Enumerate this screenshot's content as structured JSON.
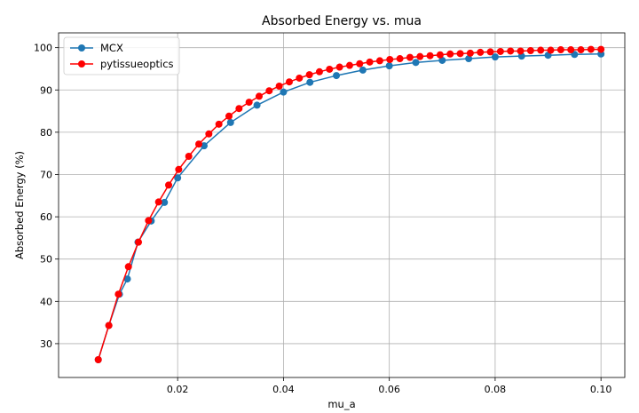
{
  "chart_data": {
    "type": "line",
    "title": "Absorbed Energy vs. mua",
    "xlabel": "mu_a",
    "ylabel": "Absorbed Energy (%)",
    "xlim": [
      -0.0025,
      0.1045
    ],
    "ylim": [
      22,
      103.5
    ],
    "xticks": [
      0.02,
      0.04,
      0.06,
      0.08,
      0.1
    ],
    "xtick_labels": [
      "0.02",
      "0.04",
      "0.06",
      "0.08",
      "0.10"
    ],
    "yticks": [
      30,
      40,
      50,
      60,
      70,
      80,
      90,
      100
    ],
    "ytick_labels": [
      "30",
      "40",
      "50",
      "60",
      "70",
      "80",
      "90",
      "100"
    ],
    "grid": true,
    "legend_position": "top-left",
    "series": [
      {
        "name": "MCX",
        "color": "#1f77b4",
        "marker": "circle",
        "x": [
          0.005,
          0.007,
          0.009,
          0.0105,
          0.0125,
          0.015,
          0.0175,
          0.02,
          0.025,
          0.03,
          0.035,
          0.04,
          0.045,
          0.05,
          0.055,
          0.06,
          0.065,
          0.07,
          0.075,
          0.08,
          0.085,
          0.09,
          0.095,
          0.1
        ],
        "y": [
          26.2,
          34.3,
          41.7,
          45.3,
          54.0,
          59.0,
          63.4,
          69.2,
          76.8,
          82.3,
          86.4,
          89.5,
          91.8,
          93.4,
          94.7,
          95.7,
          96.5,
          97.0,
          97.4,
          97.8,
          98.0,
          98.2,
          98.4,
          98.5
        ]
      },
      {
        "name": "pytissueoptics",
        "color": "#ff0000",
        "marker": "circle",
        "x": [
          0.005,
          0.007,
          0.0088,
          0.0107,
          0.0126,
          0.0145,
          0.0164,
          0.0183,
          0.0202,
          0.0221,
          0.024,
          0.0259,
          0.0278,
          0.0297,
          0.0316,
          0.0335,
          0.0354,
          0.0373,
          0.0392,
          0.0411,
          0.043,
          0.0449,
          0.0468,
          0.0487,
          0.0506,
          0.0525,
          0.0544,
          0.0563,
          0.0582,
          0.0601,
          0.062,
          0.0639,
          0.0658,
          0.0677,
          0.0696,
          0.0715,
          0.0734,
          0.0753,
          0.0772,
          0.0791,
          0.081,
          0.0829,
          0.0848,
          0.0867,
          0.0886,
          0.0905,
          0.0924,
          0.0943,
          0.0962,
          0.0981,
          0.1
        ],
        "y": [
          26.2,
          34.3,
          41.7,
          48.2,
          54.0,
          59.1,
          63.5,
          67.5,
          71.2,
          74.3,
          77.2,
          79.6,
          81.9,
          83.8,
          85.6,
          87.1,
          88.5,
          89.8,
          90.9,
          91.9,
          92.8,
          93.6,
          94.3,
          94.9,
          95.4,
          95.8,
          96.2,
          96.6,
          96.9,
          97.2,
          97.4,
          97.7,
          97.9,
          98.1,
          98.3,
          98.5,
          98.6,
          98.7,
          98.9,
          99.0,
          99.1,
          99.2,
          99.2,
          99.3,
          99.4,
          99.4,
          99.5,
          99.5,
          99.5,
          99.6,
          99.6
        ]
      }
    ]
  }
}
